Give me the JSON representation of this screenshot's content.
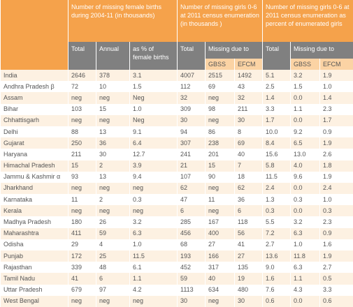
{
  "header": {
    "groups": [
      "Number of missing female births during 2004-11 (in thousands)",
      "Number of missing girls 0-6 at 2011 census enumeration (in thousands )",
      "Number of missing girls 0-6 at 2011 census enumeration as percent of enumerated girls"
    ],
    "row2": [
      "Total",
      "Annual",
      "as % of female births",
      "Total",
      "Missing due to",
      "Total",
      "Missing due to"
    ],
    "row3": [
      "GBSS",
      "EFCM",
      "GBSS",
      "EFCM"
    ]
  },
  "table": {
    "rows": [
      [
        "India",
        "2646",
        "378",
        "3.1",
        "4007",
        "2515",
        "1492",
        "5.1",
        "3.2",
        "1.9"
      ],
      [
        "Andhra Pradesh β",
        "72",
        "10",
        "1.5",
        "112",
        "69",
        "43",
        "2.5",
        "1.5",
        "1.0"
      ],
      [
        "Assam",
        "neg",
        "neg",
        "Neg",
        "32",
        "neg",
        "32",
        "1.4",
        "0.0",
        "1.4"
      ],
      [
        "Bihar",
        "103",
        "15",
        "1.0",
        "309",
        "98",
        "211",
        "3.3",
        "1.1",
        "2.3"
      ],
      [
        "Chhattisgarh",
        "neg",
        "neg",
        "Neg",
        "30",
        "neg",
        "30",
        "1.7",
        "0.0",
        "1.7"
      ],
      [
        "Delhi",
        "88",
        "13",
        "9.1",
        "94",
        "86",
        "8",
        "10.0",
        "9.2",
        "0.9"
      ],
      [
        "Gujarat",
        "250",
        "36",
        "6.4",
        "307",
        "238",
        "69",
        "8.4",
        "6.5",
        "1.9"
      ],
      [
        "Haryana",
        "211",
        "30",
        "12.7",
        "241",
        "201",
        "40",
        "15.6",
        "13.0",
        "2.6"
      ],
      [
        "Himachal Pradesh",
        "15",
        "2",
        "3.9",
        "21",
        "15",
        "7",
        "5.8",
        "4.0",
        "1.8"
      ],
      [
        "Jammu & Kashmir α",
        "93",
        "13",
        "9.4",
        "107",
        "90",
        "18",
        "11.5",
        "9.6",
        "1.9"
      ],
      [
        "Jharkhand",
        "neg",
        "neg",
        "neg",
        "62",
        "neg",
        "62",
        "2.4",
        "0.0",
        "2.4"
      ],
      [
        "Karnataka",
        "11",
        "2",
        "0.3",
        "47",
        "11",
        "36",
        "1.3",
        "0.3",
        "1.0"
      ],
      [
        "Kerala",
        "neg",
        "neg",
        "neg",
        "6",
        "neg",
        "6",
        "0.3",
        "0.0",
        "0.3"
      ],
      [
        "Madhya Pradesh",
        "180",
        "26",
        "3.2",
        "285",
        "167",
        "118",
        "5.5",
        "3.2",
        "2.3"
      ],
      [
        "Maharashtra",
        "411",
        "59",
        "6.3",
        "456",
        "400",
        "56",
        "7.2",
        "6.3",
        "0.9"
      ],
      [
        "Odisha",
        "29",
        "4",
        "1.0",
        "68",
        "27",
        "41",
        "2.7",
        "1.0",
        "1.6"
      ],
      [
        "Punjab",
        "172",
        "25",
        "11.5",
        "193",
        "166",
        "27",
        "13.6",
        "11.8",
        "1.9"
      ],
      [
        "Rajasthan",
        "339",
        "48",
        "6.1",
        "452",
        "317",
        "135",
        "9.0",
        "6.3",
        "2.7"
      ],
      [
        "Tamil Nadu",
        "41",
        "6",
        "1.1",
        "59",
        "40",
        "19",
        "1.6",
        "1.1",
        "0.5"
      ],
      [
        "Uttar Pradesh",
        "679",
        "97",
        "4.2",
        "1113",
        "634",
        "480",
        "7.6",
        "4.3",
        "3.3"
      ],
      [
        "West Bengal",
        "neg",
        "neg",
        "neg",
        "30",
        "neg",
        "30",
        "0.6",
        "0.0",
        "0.6"
      ]
    ]
  }
}
